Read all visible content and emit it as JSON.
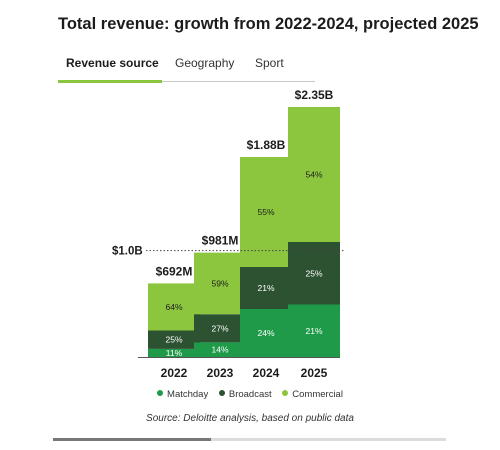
{
  "header": {
    "title": "Total revenue: growth from 2022-2024, projected 2025"
  },
  "tabs": [
    {
      "label": "Revenue source",
      "active": true
    },
    {
      "label": "Geography",
      "active": false
    },
    {
      "label": "Sport",
      "active": false
    }
  ],
  "chart_data": {
    "type": "bar",
    "stacked": true,
    "categories": [
      "2022",
      "2023",
      "2024",
      "2025"
    ],
    "totals": [
      0.692,
      0.981,
      1.88,
      2.35
    ],
    "total_labels": [
      "$692M",
      "$981M",
      "$1.88B",
      "$2.35B"
    ],
    "series": [
      {
        "name": "Matchday",
        "color": "#1e9a48",
        "text_color": "#ffffff",
        "percent": [
          11,
          14,
          24,
          21
        ],
        "labels": [
          "11%",
          "14%",
          "24%",
          "21%"
        ]
      },
      {
        "name": "Broadcast",
        "color": "#2d5232",
        "text_color": "#ffffff",
        "percent": [
          25,
          27,
          21,
          25
        ],
        "labels": [
          "25%",
          "27%",
          "21%",
          "25%"
        ]
      },
      {
        "name": "Commercial",
        "color": "#8cc63f",
        "text_color": "#1c1c1c",
        "percent": [
          64,
          59,
          55,
          54
        ],
        "labels": [
          "64%",
          "59%",
          "55%",
          "54%"
        ]
      }
    ],
    "reference_line": {
      "value": 1.0,
      "label": "$1.0B",
      "style": "dotted"
    },
    "ylim": [
      0,
      2.35
    ],
    "legend_position": "bottom",
    "grid": false
  },
  "footer": {
    "source": "Source: Deloitte analysis, based on public data"
  },
  "scrollbar": {
    "position_fraction": 0
  }
}
